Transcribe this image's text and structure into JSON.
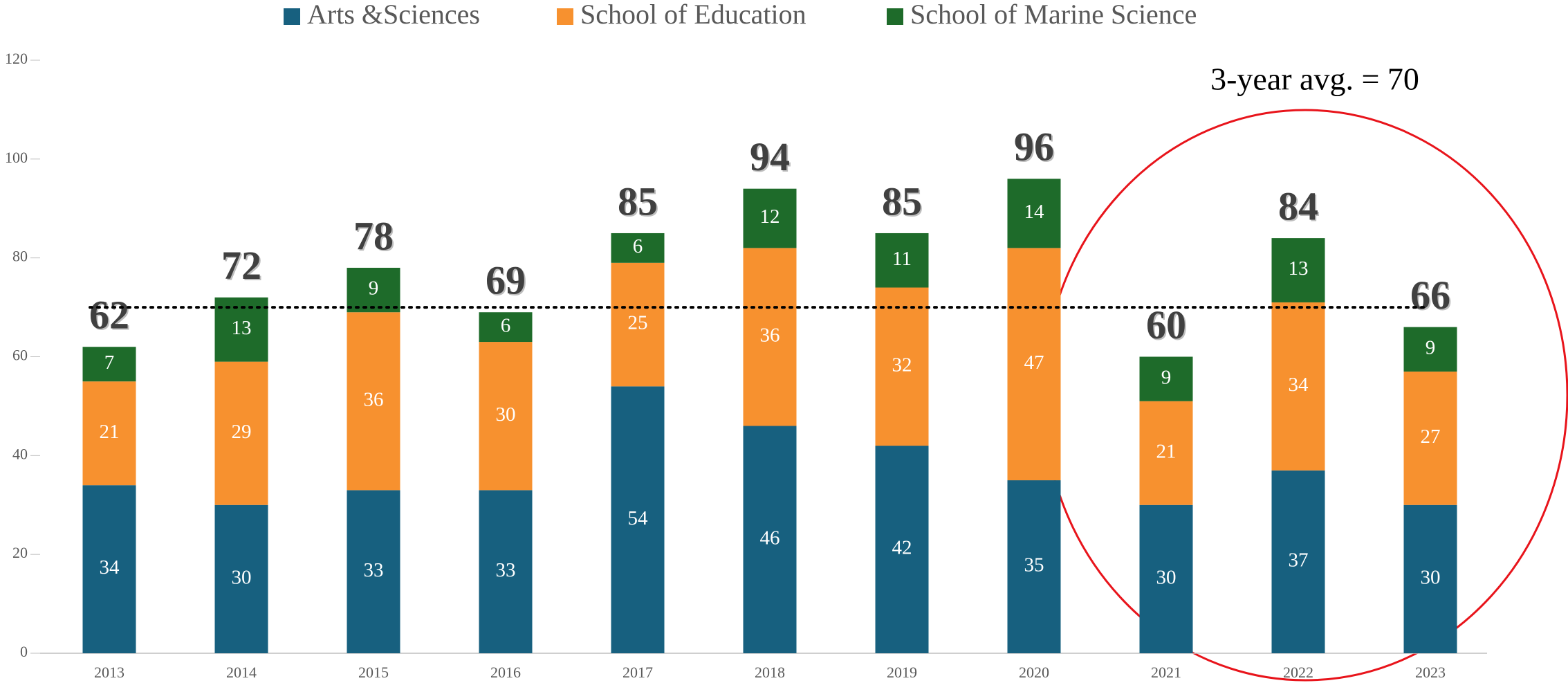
{
  "chart_data": {
    "type": "stacked_bar",
    "categories": [
      "2013",
      "2014",
      "2015",
      "2016",
      "2017",
      "2018",
      "2019",
      "2020",
      "2021",
      "2022",
      "2023"
    ],
    "series": [
      {
        "name": "Arts &Sciences",
        "color": "#17607f",
        "values": [
          34,
          30,
          33,
          33,
          54,
          46,
          42,
          35,
          30,
          37,
          30
        ]
      },
      {
        "name": "School of Education",
        "color": "#f7912f",
        "values": [
          21,
          29,
          36,
          30,
          25,
          36,
          32,
          47,
          21,
          34,
          27
        ]
      },
      {
        "name": "School of Marine Science",
        "color": "#1e6b2a",
        "values": [
          7,
          13,
          9,
          6,
          6,
          12,
          11,
          14,
          9,
          13,
          9
        ]
      }
    ],
    "totals": [
      62,
      72,
      78,
      69,
      85,
      94,
      85,
      96,
      60,
      84,
      66
    ],
    "avg_line": 70,
    "annotation": "3-year avg. = 70",
    "ylim": [
      0,
      120
    ],
    "yticks": [
      0,
      20,
      40,
      60,
      80,
      100,
      120
    ],
    "legend": "top"
  }
}
